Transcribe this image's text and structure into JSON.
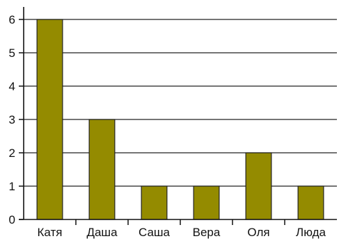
{
  "chart_data": {
    "type": "bar",
    "categories": [
      "Катя",
      "Даша",
      "Саша",
      "Вера",
      "Оля",
      "Люда"
    ],
    "values": [
      6,
      3,
      1,
      1,
      2,
      1
    ],
    "title": "",
    "xlabel": "",
    "ylabel": "",
    "ylim": [
      0,
      6
    ],
    "yticks": [
      "0",
      "1",
      "2",
      "3",
      "4",
      "5",
      "6"
    ],
    "grid": true,
    "bar_color": "#948B00",
    "grid_color": "#222222"
  }
}
